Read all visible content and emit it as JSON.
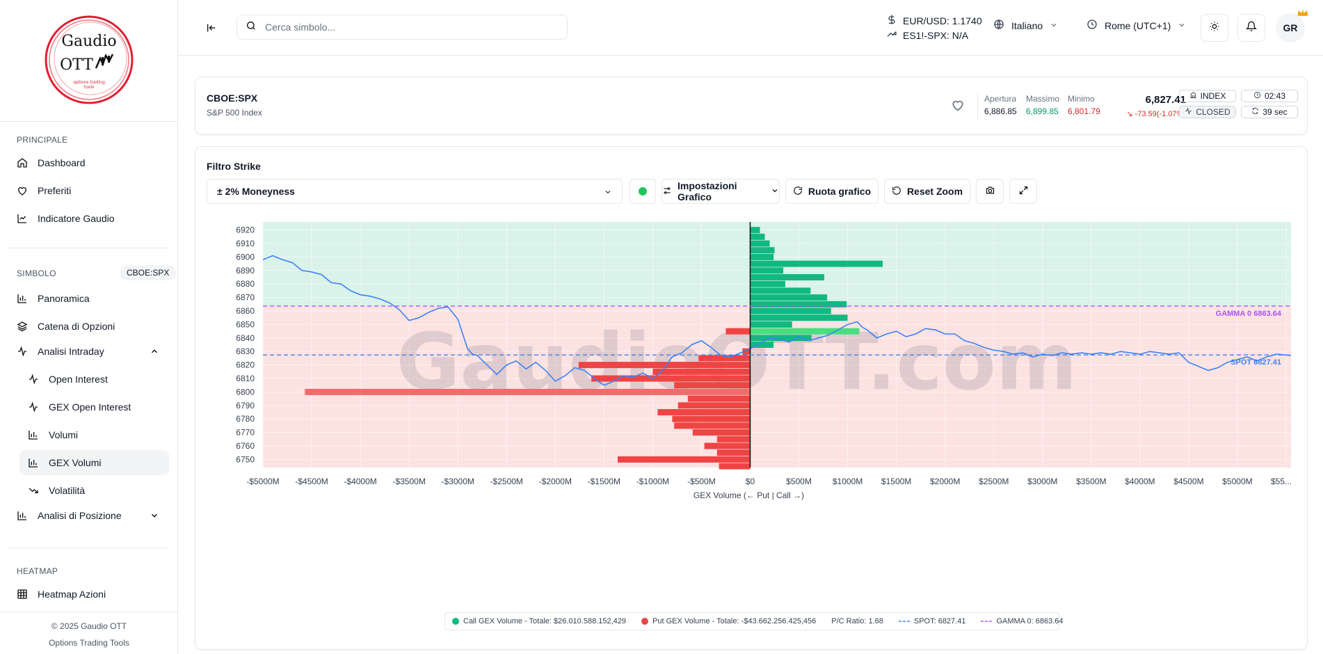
{
  "logo": {
    "line1": "Gaudio",
    "line2": "OTT",
    "tagline1": "options trading",
    "tagline2": "tools"
  },
  "sidebar": {
    "sections": {
      "principale": "PRINCIPALE",
      "simbolo": "SIMBOLO",
      "heatmap": "HEATMAP"
    },
    "symbol_badge": "CBOE:SPX",
    "items": [
      {
        "label": "Dashboard"
      },
      {
        "label": "Preferiti"
      },
      {
        "label": "Indicatore Gaudio"
      },
      {
        "label": "Panoramica"
      },
      {
        "label": "Catena di Opzioni"
      },
      {
        "label": "Analisi Intraday"
      },
      {
        "label": "Open Interest"
      },
      {
        "label": "GEX Open Interest"
      },
      {
        "label": "Volumi"
      },
      {
        "label": "GEX Volumi"
      },
      {
        "label": "Volatilità"
      },
      {
        "label": "Analisi di Posizione"
      },
      {
        "label": "Heatmap Azioni"
      }
    ],
    "footer": {
      "copyright": "© 2025 Gaudio OTT",
      "subtitle": "Options Trading Tools"
    }
  },
  "header": {
    "search_placeholder": "Cerca simbolo...",
    "eurusd": "EUR/USD: 1.1740",
    "es": "ES1!-SPX: N/A",
    "language": "Italiano",
    "timezone": "Rome (UTC+1)",
    "avatar": "GR"
  },
  "symbol": {
    "ticker": "CBOE:SPX",
    "name": "S&P 500 Index",
    "open_label": "Apertura",
    "open": "6,886.85",
    "high_label": "Massimo",
    "high": "6,899.85",
    "low_label": "Minimo",
    "low": "6,801.79",
    "price": "6,827.41",
    "change": "-73.59(-1.07%)",
    "type": "INDEX",
    "status": "CLOSED",
    "time": "02:43",
    "refresh": "39 sec"
  },
  "controls": {
    "filter_label": "Filtro Strike",
    "moneyness": "± 2% Moneyness",
    "settings": "Impostazioni Grafico",
    "rotate": "Ruota grafico",
    "reset_zoom": "Reset Zoom"
  },
  "colors": {
    "call": "#10b981",
    "put": "#ef4444",
    "spot": "#3b82f6",
    "gamma": "#a855f7",
    "call_zone": "#d9f2ea",
    "put_zone": "#fde2e2"
  },
  "chart_data": {
    "type": "bar",
    "orientation": "horizontal",
    "watermark": "GaudioOTT.com",
    "xlabel": "GEX Volume (← Put | Call →)",
    "x_ticks": [
      "-$5000M",
      "-$4500M",
      "-$4000M",
      "-$3500M",
      "-$3000M",
      "-$2500M",
      "-$2000M",
      "-$1500M",
      "-$1000M",
      "-$500M",
      "$0",
      "$500M",
      "$1000M",
      "$1500M",
      "$2000M",
      "$2500M",
      "$3000M",
      "$3500M",
      "$4000M",
      "$4500M",
      "$5000M",
      "$55..."
    ],
    "xlim": [
      -5000,
      5550
    ],
    "y_ticks": [
      6920,
      6910,
      6900,
      6890,
      6880,
      6870,
      6860,
      6850,
      6840,
      6830,
      6820,
      6810,
      6800,
      6790,
      6780,
      6770,
      6760,
      6750
    ],
    "ylim": [
      6744,
      6926
    ],
    "call_bars": [
      {
        "strike": 6920,
        "value": 100
      },
      {
        "strike": 6915,
        "value": 150
      },
      {
        "strike": 6910,
        "value": 200
      },
      {
        "strike": 6905,
        "value": 250
      },
      {
        "strike": 6900,
        "value": 240
      },
      {
        "strike": 6895,
        "value": 1360
      },
      {
        "strike": 6890,
        "value": 340
      },
      {
        "strike": 6885,
        "value": 760
      },
      {
        "strike": 6880,
        "value": 360
      },
      {
        "strike": 6875,
        "value": 620
      },
      {
        "strike": 6870,
        "value": 790
      },
      {
        "strike": 6865,
        "value": 990
      },
      {
        "strike": 6860,
        "value": 830
      },
      {
        "strike": 6855,
        "value": 1000
      },
      {
        "strike": 6850,
        "value": 430
      },
      {
        "strike": 6845,
        "value": 1120
      },
      {
        "strike": 6840,
        "value": 630
      },
      {
        "strike": 6835,
        "value": 240
      }
    ],
    "put_bars": [
      {
        "strike": 6845,
        "value": -250
      },
      {
        "strike": 6830,
        "value": -80
      },
      {
        "strike": 6825,
        "value": -530
      },
      {
        "strike": 6820,
        "value": -1760
      },
      {
        "strike": 6815,
        "value": -1000
      },
      {
        "strike": 6810,
        "value": -1630
      },
      {
        "strike": 6805,
        "value": -780
      },
      {
        "strike": 6800,
        "value": -4570
      },
      {
        "strike": 6795,
        "value": -640
      },
      {
        "strike": 6790,
        "value": -740
      },
      {
        "strike": 6785,
        "value": -950
      },
      {
        "strike": 6780,
        "value": -800
      },
      {
        "strike": 6775,
        "value": -780
      },
      {
        "strike": 6770,
        "value": -590
      },
      {
        "strike": 6765,
        "value": -340
      },
      {
        "strike": 6760,
        "value": -470
      },
      {
        "strike": 6755,
        "value": -340
      },
      {
        "strike": 6750,
        "value": -1360
      },
      {
        "strike": 6745,
        "value": -320
      }
    ],
    "price_path": [
      [
        -5000,
        6898
      ],
      [
        -4900,
        6901
      ],
      [
        -4800,
        6898
      ],
      [
        -4700,
        6896
      ],
      [
        -4600,
        6890
      ],
      [
        -4500,
        6889
      ],
      [
        -4400,
        6887
      ],
      [
        -4300,
        6881
      ],
      [
        -4200,
        6880
      ],
      [
        -4100,
        6875
      ],
      [
        -4000,
        6872
      ],
      [
        -3900,
        6871
      ],
      [
        -3800,
        6869
      ],
      [
        -3700,
        6866
      ],
      [
        -3600,
        6861
      ],
      [
        -3500,
        6853
      ],
      [
        -3400,
        6855
      ],
      [
        -3300,
        6859
      ],
      [
        -3200,
        6862
      ],
      [
        -3100,
        6863
      ],
      [
        -3000,
        6854
      ],
      [
        -2950,
        6843
      ],
      [
        -2900,
        6832
      ],
      [
        -2850,
        6828
      ],
      [
        -2800,
        6827
      ],
      [
        -2700,
        6820
      ],
      [
        -2600,
        6813
      ],
      [
        -2500,
        6820
      ],
      [
        -2400,
        6823
      ],
      [
        -2300,
        6817
      ],
      [
        -2200,
        6822
      ],
      [
        -2100,
        6816
      ],
      [
        -2000,
        6808
      ],
      [
        -1900,
        6812
      ],
      [
        -1800,
        6818
      ],
      [
        -1700,
        6816
      ],
      [
        -1600,
        6810
      ],
      [
        -1500,
        6805
      ],
      [
        -1400,
        6808
      ],
      [
        -1300,
        6812
      ],
      [
        -1200,
        6811
      ],
      [
        -1100,
        6814
      ],
      [
        -1000,
        6810
      ],
      [
        -900,
        6816
      ],
      [
        -800,
        6826
      ],
      [
        -700,
        6829
      ],
      [
        -600,
        6835
      ],
      [
        -500,
        6838
      ],
      [
        -400,
        6833
      ],
      [
        -300,
        6827
      ],
      [
        -200,
        6826
      ],
      [
        -100,
        6829
      ],
      [
        0,
        6832
      ],
      [
        100,
        6836
      ],
      [
        200,
        6840
      ],
      [
        300,
        6839
      ],
      [
        400,
        6837
      ],
      [
        500,
        6841
      ],
      [
        600,
        6838
      ],
      [
        700,
        6840
      ],
      [
        800,
        6842
      ],
      [
        900,
        6846
      ],
      [
        1000,
        6850
      ],
      [
        1100,
        6852
      ],
      [
        1150,
        6848
      ],
      [
        1200,
        6846
      ],
      [
        1300,
        6840
      ],
      [
        1400,
        6843
      ],
      [
        1500,
        6845
      ],
      [
        1600,
        6841
      ],
      [
        1700,
        6843
      ],
      [
        1800,
        6847
      ],
      [
        1900,
        6846
      ],
      [
        2000,
        6843
      ],
      [
        2100,
        6843
      ],
      [
        2200,
        6838
      ],
      [
        2300,
        6836
      ],
      [
        2400,
        6833
      ],
      [
        2500,
        6831
      ],
      [
        2600,
        6830
      ],
      [
        2700,
        6828
      ],
      [
        2800,
        6829
      ],
      [
        2900,
        6826
      ],
      [
        3000,
        6828
      ],
      [
        3100,
        6827
      ],
      [
        3200,
        6829
      ],
      [
        3300,
        6828
      ],
      [
        3400,
        6829
      ],
      [
        3500,
        6828
      ],
      [
        3600,
        6829
      ],
      [
        3700,
        6828
      ],
      [
        3800,
        6830
      ],
      [
        3900,
        6829
      ],
      [
        4000,
        6828
      ],
      [
        4100,
        6830
      ],
      [
        4200,
        6829
      ],
      [
        4300,
        6828
      ],
      [
        4400,
        6829
      ],
      [
        4500,
        6822
      ],
      [
        4600,
        6819
      ],
      [
        4700,
        6816
      ],
      [
        4800,
        6818
      ],
      [
        4900,
        6822
      ],
      [
        5000,
        6824
      ],
      [
        5100,
        6826
      ],
      [
        5200,
        6823
      ],
      [
        5300,
        6826
      ],
      [
        5400,
        6828
      ],
      [
        5550,
        6827
      ]
    ],
    "spot": 6827.41,
    "gamma0": 6863.64,
    "spot_label": "SPOT 6827.41",
    "gamma_label": "GAMMA 0 6863.64",
    "legend": {
      "call": "Call GEX Volume - Totale: $26.010.588.152,429",
      "put": "Put GEX Volume - Totale: -$43.662.256.425,456",
      "pc_ratio": "P/C Ratio: 1.68",
      "spot": "SPOT: 6827.41",
      "gamma": "GAMMA 0: 6863.64"
    }
  }
}
